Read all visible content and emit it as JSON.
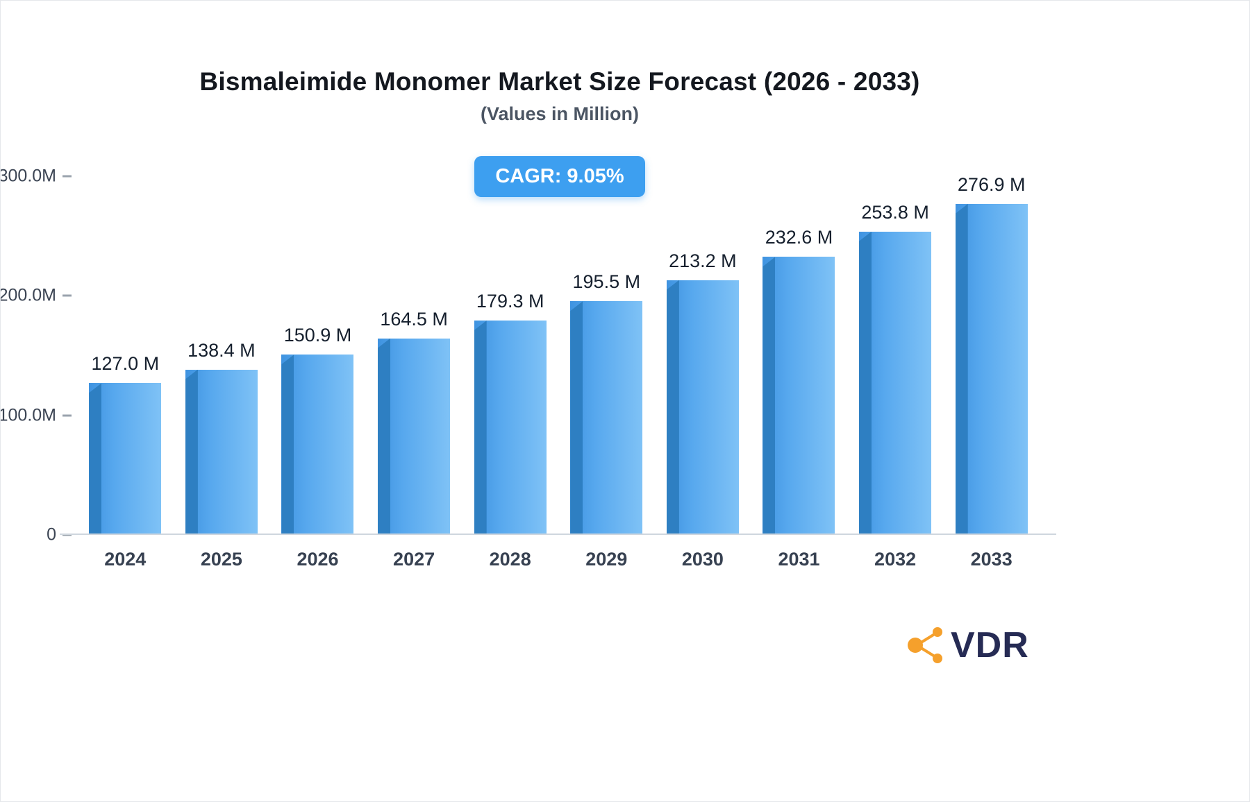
{
  "title": "Bismaleimide Monomer Market Size Forecast (2026 - 2033)",
  "subtitle": "(Values in Million)",
  "badge": "CAGR: 9.05%",
  "logo": {
    "text": "VDR"
  },
  "colors": {
    "bar_front_start": "#3F93E0",
    "bar_front_end": "#7FC2F6",
    "bar_side": "#2E7FC2",
    "badge_bg": "#3D9FF0",
    "logo_orange": "#F5A02C",
    "logo_text": "#262B54"
  },
  "chart_data": {
    "type": "bar",
    "title": "Bismaleimide Monomer Market Size Forecast (2026 - 2033)",
    "subtitle": "(Values in Million)",
    "annotation": "CAGR: 9.05%",
    "categories": [
      "2024",
      "2025",
      "2026",
      "2027",
      "2028",
      "2029",
      "2030",
      "2031",
      "2032",
      "2033"
    ],
    "values": [
      127.0,
      138.4,
      150.9,
      164.5,
      179.3,
      195.5,
      213.2,
      232.6,
      253.8,
      276.9
    ],
    "labels": [
      "127.0 M",
      "138.4 M",
      "150.9 M",
      "164.5 M",
      "179.3 M",
      "195.5 M",
      "213.2 M",
      "232.6 M",
      "253.8 M",
      "276.9 M"
    ],
    "xlabel": "",
    "ylabel": "",
    "ylim": [
      0,
      300
    ],
    "grid": false,
    "legend": false,
    "yticks": [
      {
        "value": 0,
        "label": "0"
      },
      {
        "value": 100,
        "label": "100.0M"
      },
      {
        "value": 200,
        "label": "200.0M"
      },
      {
        "value": 300,
        "label": "300.0M"
      }
    ]
  }
}
